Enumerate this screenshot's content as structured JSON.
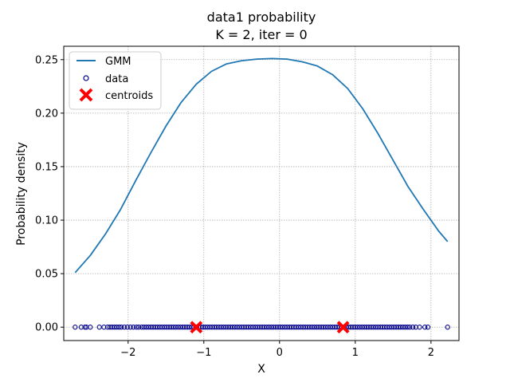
{
  "chart_data": {
    "type": "line",
    "title": "data1 probability",
    "subtitle": "K = 2, iter = 0",
    "xlabel": "X",
    "ylabel": "Probability density",
    "xlim": [
      -2.85,
      2.37
    ],
    "ylim": [
      -0.0125,
      0.2625
    ],
    "xticks": [
      -2,
      -1,
      0,
      1,
      2
    ],
    "xtick_labels": [
      "−2",
      "−1",
      "0",
      "1",
      "2"
    ],
    "yticks": [
      0.0,
      0.05,
      0.1,
      0.15,
      0.2,
      0.25
    ],
    "ytick_labels": [
      "0.00",
      "0.05",
      "0.10",
      "0.15",
      "0.20",
      "0.25"
    ],
    "grid": true,
    "legend_position": "top-left",
    "series": [
      {
        "name": "GMM",
        "kind": "line",
        "color": "#1f77b4",
        "x": [
          -2.7,
          -2.5,
          -2.3,
          -2.1,
          -1.9,
          -1.7,
          -1.5,
          -1.3,
          -1.1,
          -0.9,
          -0.7,
          -0.5,
          -0.3,
          -0.1,
          0.1,
          0.3,
          0.5,
          0.7,
          0.9,
          1.1,
          1.3,
          1.5,
          1.7,
          1.9,
          2.1,
          2.22
        ],
        "y": [
          0.051,
          0.067,
          0.087,
          0.11,
          0.137,
          0.163,
          0.188,
          0.21,
          0.227,
          0.239,
          0.246,
          0.249,
          0.2505,
          0.251,
          0.2505,
          0.248,
          0.244,
          0.236,
          0.223,
          0.204,
          0.181,
          0.156,
          0.131,
          0.11,
          0.09,
          0.08
        ]
      },
      {
        "name": "data",
        "kind": "scatter",
        "color": "#00008b",
        "x": [
          -2.7,
          -2.62,
          -2.57,
          -2.55,
          -2.5,
          -2.38,
          -2.32,
          -2.27,
          -2.24,
          -2.21,
          -2.18,
          -2.15,
          -2.12,
          -2.09,
          -2.05,
          -2.01,
          -1.97,
          -1.93,
          -1.89,
          -1.86,
          -1.82,
          -1.79,
          -1.76,
          -1.73,
          -1.7,
          -1.67,
          -1.64,
          -1.61,
          -1.58,
          -1.55,
          -1.52,
          -1.49,
          -1.46,
          -1.43,
          -1.4,
          -1.37,
          -1.34,
          -1.31,
          -1.28,
          -1.25,
          -1.22,
          -1.19,
          -1.16,
          -1.13,
          -1.1,
          -1.07,
          -1.04,
          -1.01,
          -0.98,
          -0.95,
          -0.92,
          -0.89,
          -0.86,
          -0.83,
          -0.8,
          -0.77,
          -0.74,
          -0.71,
          -0.68,
          -0.65,
          -0.62,
          -0.59,
          -0.56,
          -0.53,
          -0.5,
          -0.47,
          -0.44,
          -0.41,
          -0.38,
          -0.35,
          -0.32,
          -0.29,
          -0.26,
          -0.23,
          -0.2,
          -0.17,
          -0.14,
          -0.11,
          -0.08,
          -0.05,
          -0.02,
          0.01,
          0.04,
          0.07,
          0.1,
          0.13,
          0.16,
          0.19,
          0.22,
          0.25,
          0.28,
          0.31,
          0.34,
          0.37,
          0.4,
          0.43,
          0.46,
          0.49,
          0.52,
          0.55,
          0.58,
          0.61,
          0.64,
          0.67,
          0.7,
          0.73,
          0.76,
          0.79,
          0.82,
          0.85,
          0.88,
          0.91,
          0.94,
          0.97,
          1.0,
          1.03,
          1.06,
          1.09,
          1.12,
          1.15,
          1.18,
          1.21,
          1.24,
          1.27,
          1.3,
          1.33,
          1.36,
          1.39,
          1.42,
          1.45,
          1.48,
          1.51,
          1.54,
          1.57,
          1.6,
          1.63,
          1.66,
          1.69,
          1.72,
          1.76,
          1.8,
          1.85,
          1.92,
          1.96,
          2.22
        ],
        "y_constant": 0.0
      },
      {
        "name": "centroids",
        "kind": "marker-x",
        "color": "#ff0000",
        "x": [
          -1.1,
          0.84
        ],
        "y": [
          0.0,
          0.0
        ]
      }
    ]
  }
}
